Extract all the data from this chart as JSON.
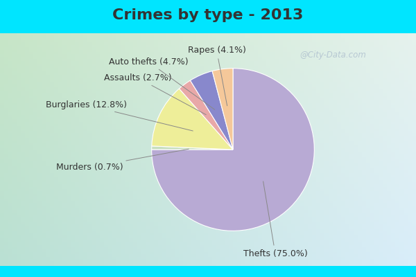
{
  "title": "Crimes by type - 2013",
  "title_fontsize": 16,
  "title_fontweight": "bold",
  "slices": [
    {
      "label": "Thefts (75.0%)",
      "value": 75.0,
      "color": "#b8aad4"
    },
    {
      "label": "Murders (0.7%)",
      "value": 0.7,
      "color": "#c8dfc0"
    },
    {
      "label": "Burglaries (12.8%)",
      "value": 12.8,
      "color": "#eeee99"
    },
    {
      "label": "Assaults (2.7%)",
      "value": 2.7,
      "color": "#e8a8a8"
    },
    {
      "label": "Auto thefts (4.7%)",
      "value": 4.7,
      "color": "#8888cc"
    },
    {
      "label": "Rapes (4.1%)",
      "value": 4.1,
      "color": "#f5c89a"
    }
  ],
  "cyan_bar_color": "#00e5ff",
  "bg_color_topleft": "#c8e8c8",
  "bg_color_topright": "#e0f0f0",
  "bg_color_bottomleft": "#b8d8b8",
  "bg_color_bottomright": "#d0e8e8",
  "title_color": "#333333",
  "label_fontsize": 9,
  "watermark": "@City-Data.com",
  "watermark_color": "#aabbcc"
}
